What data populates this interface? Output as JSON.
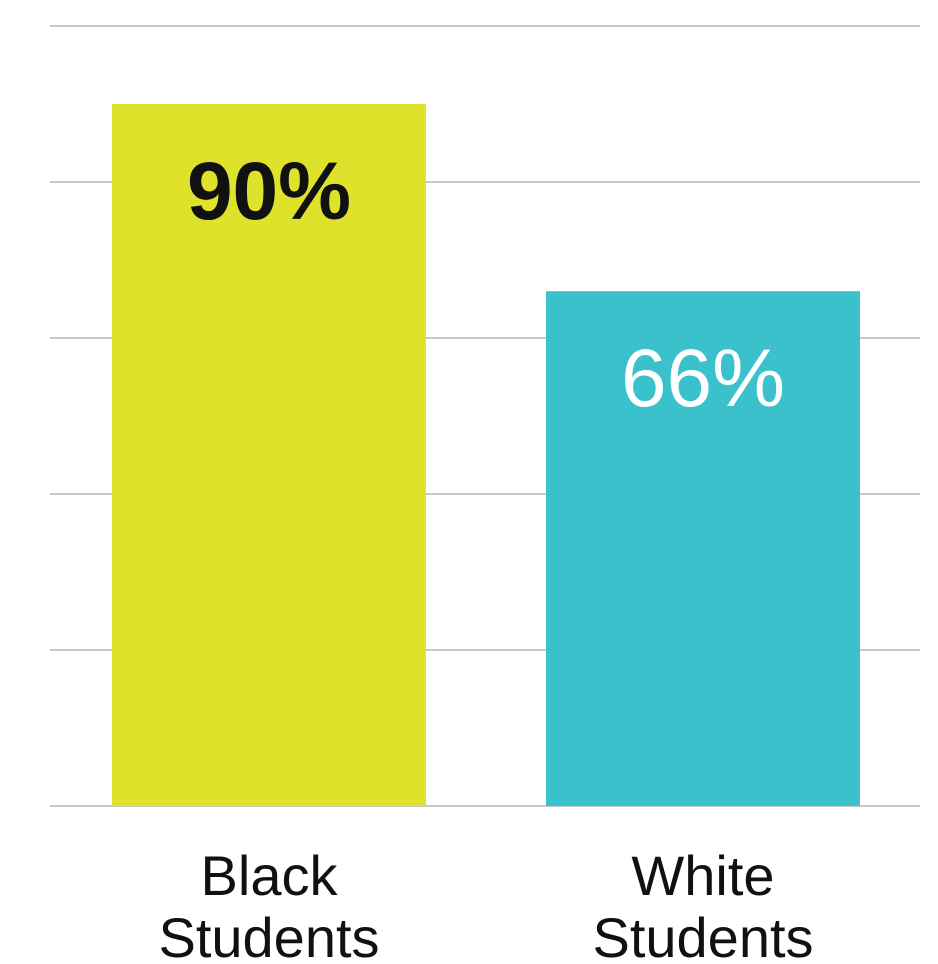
{
  "chart_data": {
    "type": "bar",
    "categories": [
      [
        "Black",
        "Students"
      ],
      [
        "White",
        "Students"
      ]
    ],
    "values": [
      90,
      66
    ],
    "data_labels": [
      "90%",
      "66%"
    ],
    "colors": [
      "#dee22a",
      "#3ac1cc"
    ],
    "label_colors": [
      "#111111",
      "#ffffff"
    ],
    "label_weights": [
      "bold",
      "light"
    ],
    "ylim": [
      0,
      100
    ],
    "grid": true,
    "gridline_color": "#c8c8c8",
    "title": "",
    "xlabel": "",
    "ylabel": ""
  }
}
